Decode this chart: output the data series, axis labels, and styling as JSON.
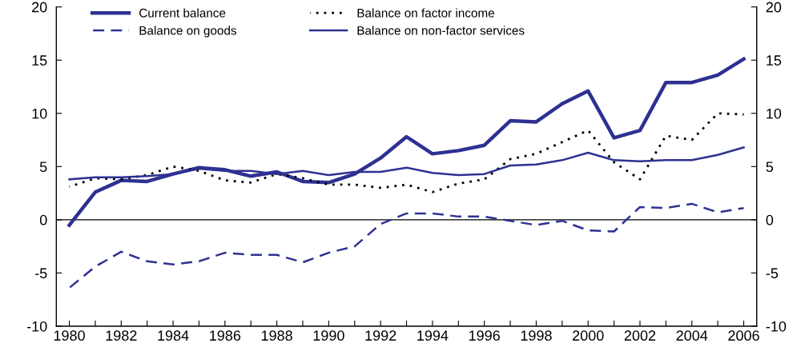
{
  "chart_data": {
    "type": "line",
    "x": [
      1980,
      1981,
      1982,
      1983,
      1984,
      1985,
      1986,
      1987,
      1988,
      1989,
      1990,
      1991,
      1992,
      1993,
      1994,
      1995,
      1996,
      1997,
      1998,
      1999,
      2000,
      2001,
      2002,
      2003,
      2004,
      2005,
      2006
    ],
    "series": [
      {
        "name": "Current balance",
        "color": "#2e3192",
        "line_style": "solid",
        "values": [
          -0.5,
          2.6,
          3.7,
          3.6,
          4.3,
          4.9,
          4.7,
          4.1,
          4.5,
          3.6,
          3.5,
          4.3,
          5.8,
          7.8,
          6.2,
          6.5,
          7.0,
          9.3,
          9.2,
          10.9,
          12.1,
          7.7,
          8.4,
          12.9,
          12.9,
          13.6,
          15.1
        ]
      },
      {
        "name": "Balance on goods",
        "color": "#2e3192",
        "line_style": "dashed",
        "values": [
          -6.4,
          -4.4,
          -3.0,
          -3.9,
          -4.2,
          -3.9,
          -3.1,
          -3.3,
          -3.3,
          -4.0,
          -3.1,
          -2.5,
          -0.4,
          0.6,
          0.6,
          0.3,
          0.3,
          -0.1,
          -0.5,
          -0.1,
          -1.0,
          -1.1,
          1.2,
          1.1,
          1.5,
          0.7,
          1.1
        ]
      },
      {
        "name": "Balance on factor income",
        "color": "#000000",
        "line_style": "dotted",
        "values": [
          3.1,
          3.9,
          3.8,
          4.2,
          5.0,
          4.6,
          3.7,
          3.5,
          4.3,
          3.9,
          3.3,
          3.3,
          3.0,
          3.3,
          2.6,
          3.4,
          3.8,
          5.7,
          6.2,
          7.3,
          8.4,
          5.4,
          3.8,
          7.9,
          7.5,
          10.0,
          9.9
        ]
      },
      {
        "name": "Balance on non-factor services",
        "color": "#2e3192",
        "line_style": "solid",
        "values": [
          3.8,
          4.0,
          4.0,
          4.1,
          4.3,
          4.8,
          4.6,
          4.6,
          4.3,
          4.6,
          4.2,
          4.5,
          4.5,
          4.9,
          4.4,
          4.2,
          4.3,
          5.1,
          5.2,
          5.6,
          6.3,
          5.6,
          5.5,
          5.6,
          5.6,
          6.1,
          6.8
        ]
      }
    ],
    "xlim": [
      1979.5,
      2006.5
    ],
    "xticks": [
      1980,
      {
        "value": 1981,
        "label": null
      },
      1982,
      {
        "value": 1983,
        "label": null
      },
      1984,
      {
        "value": 1985,
        "label": null
      },
      1986,
      {
        "value": 1987,
        "label": null
      },
      1988,
      {
        "value": 1989,
        "label": null
      },
      1990,
      {
        "value": 1991,
        "label": null
      },
      1992,
      {
        "value": 1993,
        "label": null
      },
      1994,
      {
        "value": 1995,
        "label": null
      },
      1996,
      {
        "value": 1997,
        "label": null
      },
      1998,
      {
        "value": 1999,
        "label": null
      },
      2000,
      {
        "value": 2001,
        "label": null
      },
      2002,
      {
        "value": 2003,
        "label": null
      },
      2004,
      {
        "value": 2005,
        "label": null
      },
      2006
    ],
    "ylim": [
      -10,
      20
    ],
    "yticks": [
      -10,
      -5,
      0,
      5,
      10,
      15,
      20
    ],
    "y2lim": [
      -10,
      20
    ],
    "y2ticks": [
      -10,
      -5,
      0,
      5,
      10,
      15,
      20
    ],
    "ref_lines": [
      {
        "axis": "y",
        "value": 0,
        "color": "#000000"
      }
    ],
    "legend": "top",
    "grid": false
  }
}
